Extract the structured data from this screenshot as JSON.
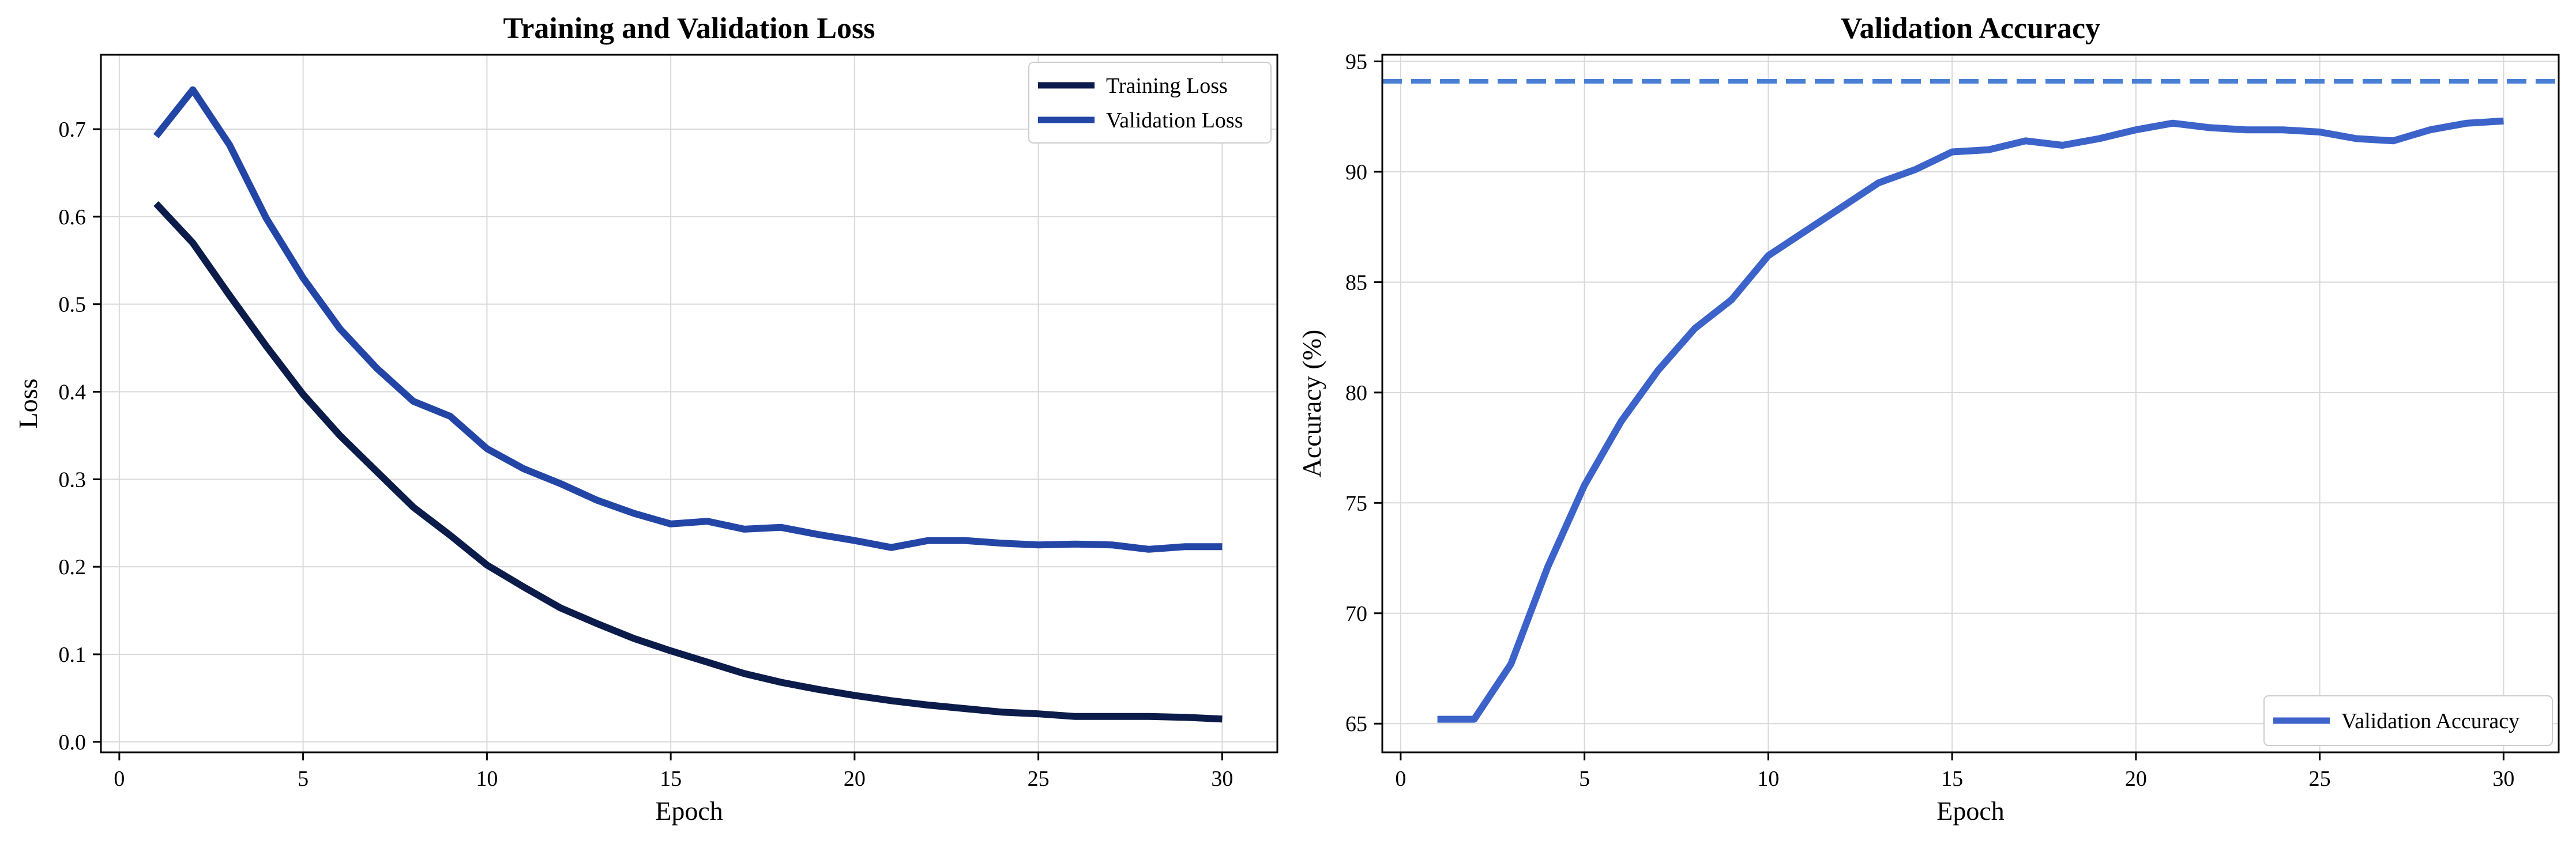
{
  "chart_data": [
    {
      "type": "line",
      "title": "Training and Validation Loss",
      "xlabel": "Epoch",
      "ylabel": "Loss",
      "xlim": [
        -0.5,
        31.5
      ],
      "ylim": [
        -0.012,
        0.785
      ],
      "xticks": [
        0,
        5,
        10,
        15,
        20,
        25,
        30
      ],
      "yticks": [
        0.0,
        0.1,
        0.2,
        0.3,
        0.4,
        0.5,
        0.6,
        0.7
      ],
      "ytick_labels": [
        "0.0",
        "0.1",
        "0.2",
        "0.3",
        "0.4",
        "0.5",
        "0.6",
        "0.7"
      ],
      "grid": true,
      "legend_position": "top-right",
      "x": [
        1,
        2,
        3,
        4,
        5,
        6,
        7,
        8,
        9,
        10,
        11,
        12,
        13,
        14,
        15,
        16,
        17,
        18,
        19,
        20,
        21,
        22,
        23,
        24,
        25,
        26,
        27,
        28,
        29,
        30
      ],
      "series": [
        {
          "name": "Training Loss",
          "color": "#0b1c4a",
          "values": [
            0.615,
            0.57,
            0.51,
            0.452,
            0.397,
            0.35,
            0.309,
            0.268,
            0.236,
            0.202,
            0.177,
            0.153,
            0.135,
            0.118,
            0.104,
            0.091,
            0.078,
            0.068,
            0.06,
            0.053,
            0.047,
            0.042,
            0.038,
            0.034,
            0.032,
            0.029,
            0.029,
            0.029,
            0.028,
            0.026
          ]
        },
        {
          "name": "Validation Loss",
          "color": "#2346a6",
          "values": [
            0.692,
            0.745,
            0.682,
            0.598,
            0.53,
            0.472,
            0.427,
            0.389,
            0.372,
            0.335,
            0.312,
            0.295,
            0.276,
            0.261,
            0.249,
            0.252,
            0.243,
            0.245,
            0.237,
            0.23,
            0.222,
            0.23,
            0.23,
            0.227,
            0.225,
            0.226,
            0.225,
            0.22,
            0.223,
            0.223
          ]
        }
      ]
    },
    {
      "type": "line",
      "title": "Validation Accuracy",
      "xlabel": "Epoch",
      "ylabel": "Accuracy (%)",
      "xlim": [
        -0.5,
        31.5
      ],
      "ylim": [
        63.7,
        95.3
      ],
      "xticks": [
        0,
        5,
        10,
        15,
        20,
        25,
        30
      ],
      "yticks": [
        65,
        70,
        75,
        80,
        85,
        90,
        95
      ],
      "grid": true,
      "legend_position": "bottom-right",
      "reference_line": {
        "y": 94.1,
        "color": "#4a7fd6",
        "style": "dashed"
      },
      "x": [
        1,
        2,
        3,
        4,
        5,
        6,
        7,
        8,
        9,
        10,
        11,
        12,
        13,
        14,
        15,
        16,
        17,
        18,
        19,
        20,
        21,
        22,
        23,
        24,
        25,
        26,
        27,
        28,
        29,
        30
      ],
      "series": [
        {
          "name": "Validation Accuracy",
          "color": "#3b63c9",
          "values": [
            65.2,
            65.2,
            67.7,
            72.1,
            75.8,
            78.7,
            81.0,
            82.9,
            84.2,
            86.2,
            87.3,
            88.4,
            89.5,
            90.1,
            90.9,
            91.0,
            91.4,
            91.2,
            91.5,
            91.9,
            92.2,
            92.0,
            91.9,
            91.9,
            91.8,
            91.5,
            91.4,
            91.9,
            92.2,
            92.3
          ]
        }
      ]
    }
  ]
}
